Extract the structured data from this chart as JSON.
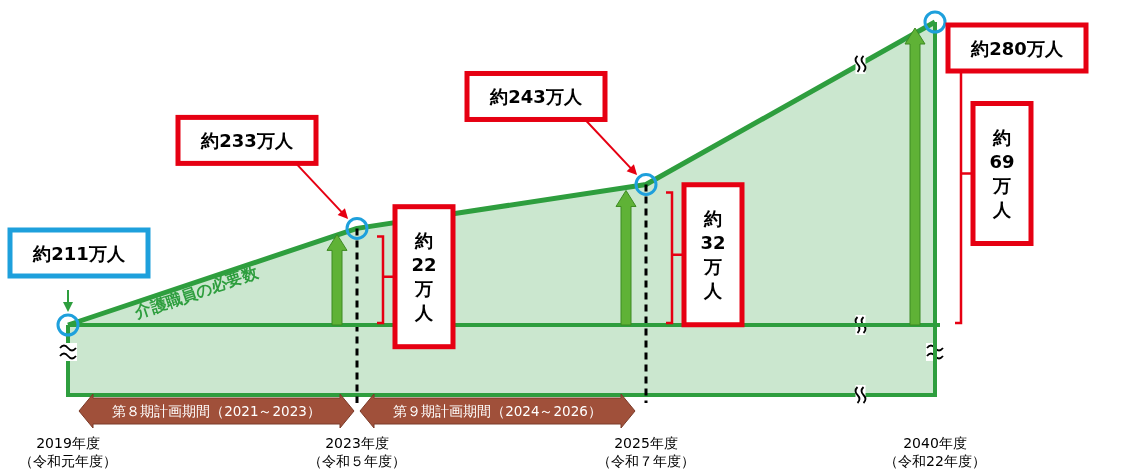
{
  "chart_data": {
    "type": "area",
    "categories": [
      "2019年度（令和元年度）",
      "2023年度（令和５年度）",
      "2025年度（令和７年度）",
      "2040年度（令和22年度）"
    ],
    "series": [
      {
        "name": "介護職員の必要数",
        "color": "#2e9e3e",
        "values": [
          211,
          233,
          243,
          280
        ],
        "value_labels": [
          "約211万人",
          "約233万人",
          "約243万人",
          "約280万人"
        ]
      }
    ],
    "marker": "circle",
    "ref_lines": [
      {
        "axis": "x",
        "value": "2023年度（令和５年度）",
        "line_style": "dashed",
        "color": "#000000"
      },
      {
        "axis": "x",
        "value": "2025年度（令和７年度）",
        "line_style": "dashed",
        "color": "#000000"
      },
      {
        "axis": "x",
        "value": "2040年度（令和22年度）",
        "color": "#2e9e3e"
      },
      {
        "axis": "y",
        "value": 211,
        "color": "#2e9e3e"
      }
    ],
    "annotations": [
      "約22万人",
      "約32万人",
      "約69万人",
      "第８期計画期間（2021～2023）",
      "第９期計画期間（2024～2026）"
    ]
  }
}
